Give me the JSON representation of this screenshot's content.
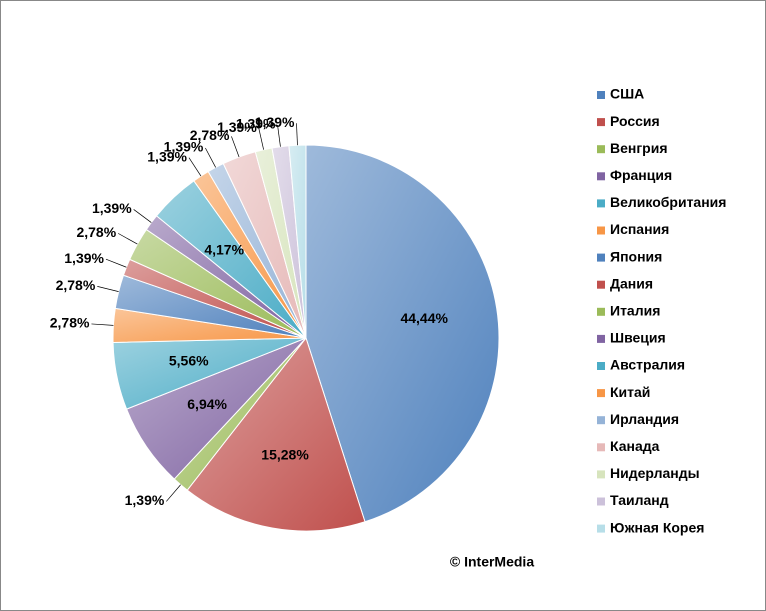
{
  "chart_data": {
    "type": "pie",
    "categories": [
      "США",
      "Россия",
      "Венгрия",
      "Франция",
      "Великобритания",
      "Испания",
      "Япония",
      "Дания",
      "Италия",
      "Швеция",
      "Австралия",
      "Китай",
      "Ирландия",
      "Канада",
      "Нидерланды",
      "Таиланд",
      "Южная Корея"
    ],
    "values": [
      44.44,
      15.28,
      1.39,
      6.94,
      5.56,
      2.78,
      2.78,
      1.39,
      2.78,
      1.39,
      4.17,
      1.39,
      1.39,
      2.78,
      1.39,
      1.39,
      1.39
    ],
    "value_labels": [
      "44,44%",
      "15,28%",
      "1,39%",
      "6,94%",
      "5,56%",
      "2,78%",
      "2,78%",
      "1,39%",
      "2,78%",
      "1,39%",
      "4,17%",
      "1,39%",
      "1,39%",
      "2,78%",
      "1,39%",
      "1,39%",
      "1,39%"
    ],
    "colors": [
      "#4f81bd",
      "#c0504d",
      "#9bbb59",
      "#8064a2",
      "#4bacc6",
      "#f79646",
      "#4f81bd",
      "#c0504d",
      "#9bbb59",
      "#8064a2",
      "#4bacc6",
      "#f79646",
      "#95b3d7",
      "#e6b9b8",
      "#d7e4bd",
      "#ccc1da",
      "#b7dee8"
    ],
    "legend": "right",
    "annotation": "© InterMedia"
  }
}
